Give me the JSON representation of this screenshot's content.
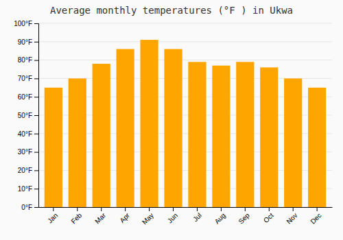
{
  "chart_data": {
    "type": "bar",
    "title": "Average monthly temperatures (°F ) in Ukwa",
    "categories": [
      "Jan",
      "Feb",
      "Mar",
      "Apr",
      "May",
      "Jun",
      "Jul",
      "Aug",
      "Sep",
      "Oct",
      "Nov",
      "Dec"
    ],
    "values": [
      65,
      70,
      78,
      86,
      91,
      86,
      79,
      77,
      79,
      76,
      70,
      65
    ],
    "color": "#FFA500",
    "ylim": [
      0,
      100
    ],
    "yticks": [
      {
        "value": 0,
        "label": "0°F"
      },
      {
        "value": 10,
        "label": "10°F"
      },
      {
        "value": 20,
        "label": "20°F"
      },
      {
        "value": 30,
        "label": "30°F"
      },
      {
        "value": 40,
        "label": "40°F"
      },
      {
        "value": 50,
        "label": "50°F"
      },
      {
        "value": 60,
        "label": "60°F"
      },
      {
        "value": 70,
        "label": "70°F"
      },
      {
        "value": 80,
        "label": "80°F"
      },
      {
        "value": 90,
        "label": "90°F"
      },
      {
        "value": 100,
        "label": "100°F"
      }
    ],
    "grid": true
  }
}
